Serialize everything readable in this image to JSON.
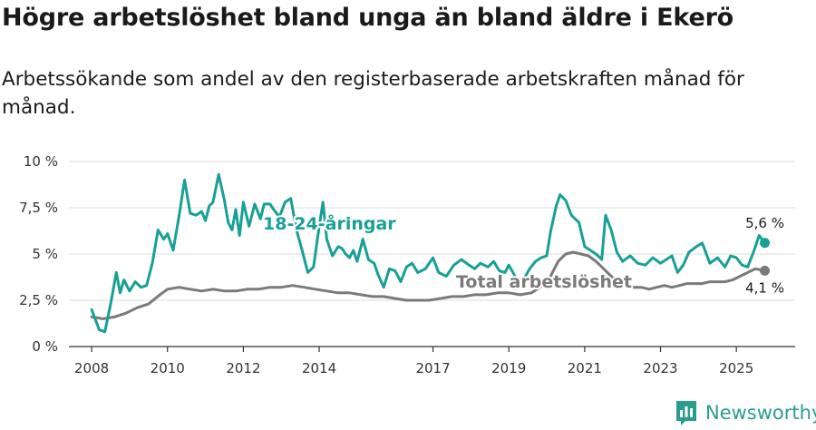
{
  "title": "Högre arbetslöshet bland unga än bland äldre i Ekerö",
  "subtitle": "Arbetssökande som andel av den registerbaserade arbetskraften månad för månad.",
  "brand": "Newsworthy",
  "colors": {
    "young": "#18a096",
    "total": "#7a7a7a",
    "grid": "#dcdcdc",
    "axis": "#333333",
    "brand": "#2a9d8f"
  },
  "chart_data": {
    "type": "line",
    "title": "Högre arbetslöshet bland unga än bland äldre i Ekerö",
    "xlabel": "",
    "ylabel": "",
    "xlim": [
      2007.4,
      2026.55
    ],
    "ylim": [
      0,
      10
    ],
    "y_ticks": [
      0,
      2.5,
      5,
      7.5,
      10
    ],
    "y_tick_labels": [
      "0 %",
      "2,5 %",
      "5 %",
      "7,5 %",
      "10 %"
    ],
    "x_ticks": [
      2008,
      2010,
      2012,
      2014,
      2017,
      2019,
      2021,
      2023,
      2025
    ],
    "x_tick_labels": [
      "2008",
      "2010",
      "2012",
      "2014",
      "2017",
      "2019",
      "2021",
      "2023",
      "2025"
    ],
    "grid": true,
    "series": [
      {
        "name": "18-24-åringar",
        "label": "18-24-åringar",
        "color": "#18a096",
        "end_label": "5,6 %",
        "x": [
          2008.0,
          2008.2,
          2008.35,
          2008.5,
          2008.65,
          2008.75,
          2008.85,
          2009.0,
          2009.15,
          2009.3,
          2009.45,
          2009.6,
          2009.75,
          2009.9,
          2010.0,
          2010.15,
          2010.3,
          2010.45,
          2010.6,
          2010.75,
          2010.9,
          2011.0,
          2011.1,
          2011.2,
          2011.35,
          2011.5,
          2011.6,
          2011.7,
          2011.8,
          2011.9,
          2012.0,
          2012.15,
          2012.3,
          2012.45,
          2012.55,
          2012.7,
          2012.8,
          2012.95,
          2013.1,
          2013.25,
          2013.4,
          2013.55,
          2013.7,
          2013.85,
          2014.0,
          2014.1,
          2014.2,
          2014.35,
          2014.5,
          2014.6,
          2014.7,
          2014.8,
          2014.9,
          2015.0,
          2015.15,
          2015.3,
          2015.45,
          2015.55,
          2015.7,
          2015.85,
          2016.0,
          2016.15,
          2016.3,
          2016.45,
          2016.6,
          2016.8,
          2017.0,
          2017.15,
          2017.35,
          2017.55,
          2017.75,
          2017.95,
          2018.1,
          2018.25,
          2018.45,
          2018.6,
          2018.75,
          2018.9,
          2019.0,
          2019.3,
          2019.55,
          2019.7,
          2019.85,
          2020.0,
          2020.1,
          2020.25,
          2020.35,
          2020.5,
          2020.65,
          2020.85,
          2021.0,
          2021.15,
          2021.3,
          2021.45,
          2021.55,
          2021.7,
          2021.85,
          2022.0,
          2022.2,
          2022.4,
          2022.6,
          2022.8,
          2023.0,
          2023.15,
          2023.3,
          2023.45,
          2023.6,
          2023.75,
          2023.95,
          2024.1,
          2024.3,
          2024.5,
          2024.7,
          2024.85,
          2025.0,
          2025.15,
          2025.3,
          2025.45,
          2025.6,
          2025.75
        ],
        "values": [
          2.0,
          0.9,
          0.8,
          2.3,
          4.0,
          2.9,
          3.6,
          3.0,
          3.5,
          3.2,
          3.3,
          4.5,
          6.3,
          5.8,
          6.1,
          5.2,
          7.0,
          9.0,
          7.2,
          7.1,
          7.3,
          6.8,
          7.6,
          7.8,
          9.3,
          7.9,
          6.7,
          6.3,
          7.4,
          6.0,
          7.8,
          6.5,
          7.7,
          6.9,
          7.7,
          7.7,
          7.4,
          7.0,
          7.8,
          8.0,
          6.3,
          5.2,
          4.0,
          4.3,
          6.5,
          7.8,
          5.8,
          4.9,
          5.4,
          5.3,
          5.0,
          4.8,
          5.2,
          4.6,
          5.8,
          4.7,
          4.5,
          3.9,
          3.2,
          4.2,
          4.1,
          3.5,
          4.3,
          4.5,
          4.0,
          4.2,
          4.8,
          4.0,
          3.8,
          4.4,
          4.7,
          4.4,
          4.2,
          4.5,
          4.3,
          4.6,
          4.1,
          4.0,
          4.4,
          3.3,
          4.2,
          4.6,
          4.8,
          4.9,
          6.2,
          7.6,
          8.2,
          7.9,
          7.1,
          6.7,
          5.4,
          5.2,
          5.0,
          4.7,
          7.1,
          6.3,
          5.1,
          4.6,
          4.9,
          4.5,
          4.4,
          4.8,
          4.5,
          4.7,
          4.9,
          4.0,
          4.4,
          5.1,
          5.4,
          5.6,
          4.5,
          4.8,
          4.3,
          4.9,
          4.8,
          4.4,
          4.3,
          5.1,
          6.0,
          5.6
        ]
      },
      {
        "name": "Total arbetslöshet",
        "label": "Total arbetslöshet",
        "color": "#7a7a7a",
        "end_label": "4,1 %",
        "x": [
          2008.0,
          2008.3,
          2008.6,
          2008.9,
          2009.2,
          2009.5,
          2009.8,
          2010.0,
          2010.3,
          2010.6,
          2010.9,
          2011.2,
          2011.5,
          2011.8,
          2012.1,
          2012.4,
          2012.7,
          2013.0,
          2013.3,
          2013.6,
          2013.9,
          2014.2,
          2014.5,
          2014.8,
          2015.1,
          2015.4,
          2015.7,
          2016.0,
          2016.3,
          2016.6,
          2016.9,
          2017.2,
          2017.5,
          2017.8,
          2018.1,
          2018.4,
          2018.7,
          2019.0,
          2019.3,
          2019.6,
          2019.9,
          2020.1,
          2020.3,
          2020.5,
          2020.7,
          2020.9,
          2021.1,
          2021.3,
          2021.5,
          2021.7,
          2021.9,
          2022.1,
          2022.3,
          2022.5,
          2022.7,
          2022.9,
          2023.1,
          2023.3,
          2023.5,
          2023.7,
          2023.9,
          2024.1,
          2024.3,
          2024.5,
          2024.7,
          2024.9,
          2025.1,
          2025.3,
          2025.5,
          2025.75
        ],
        "values": [
          1.6,
          1.5,
          1.6,
          1.8,
          2.1,
          2.3,
          2.8,
          3.1,
          3.2,
          3.1,
          3.0,
          3.1,
          3.0,
          3.0,
          3.1,
          3.1,
          3.2,
          3.2,
          3.3,
          3.2,
          3.1,
          3.0,
          2.9,
          2.9,
          2.8,
          2.7,
          2.7,
          2.6,
          2.5,
          2.5,
          2.5,
          2.6,
          2.7,
          2.7,
          2.8,
          2.8,
          2.9,
          2.9,
          2.8,
          2.9,
          3.3,
          3.8,
          4.6,
          5.0,
          5.1,
          5.0,
          4.9,
          4.6,
          4.2,
          3.8,
          3.4,
          3.3,
          3.2,
          3.2,
          3.1,
          3.2,
          3.3,
          3.2,
          3.3,
          3.4,
          3.4,
          3.4,
          3.5,
          3.5,
          3.5,
          3.6,
          3.8,
          4.0,
          4.2,
          4.1
        ]
      }
    ]
  }
}
